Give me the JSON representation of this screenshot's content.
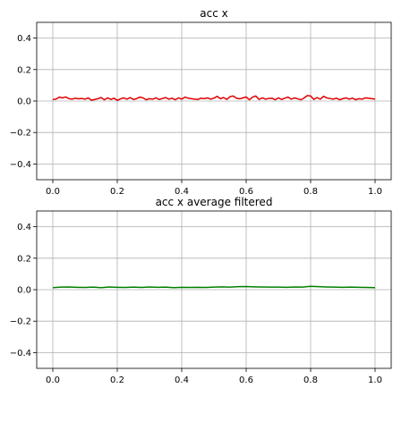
{
  "chart_data": [
    {
      "type": "line",
      "title": "acc x",
      "xlabel": "",
      "ylabel": "",
      "xlim": [
        -0.05,
        1.05
      ],
      "ylim": [
        -0.5,
        0.5
      ],
      "grid": true,
      "legend": "none",
      "xticks": [
        "0.0",
        "0.2",
        "0.4",
        "0.6",
        "0.8",
        "1.0"
      ],
      "yticks": [
        "0.4",
        "0.2",
        "0.0",
        "−0.2",
        "−0.4"
      ],
      "series": [
        {
          "color": "#e00000",
          "x": [
            0.0,
            0.01,
            0.02,
            0.03,
            0.04,
            0.05,
            0.06,
            0.07,
            0.08,
            0.09,
            0.1,
            0.11,
            0.12,
            0.13,
            0.14,
            0.15,
            0.16,
            0.17,
            0.18,
            0.19,
            0.2,
            0.21,
            0.22,
            0.23,
            0.24,
            0.25,
            0.26,
            0.27,
            0.28,
            0.29,
            0.3,
            0.31,
            0.32,
            0.33,
            0.34,
            0.35,
            0.36,
            0.37,
            0.38,
            0.39,
            0.4,
            0.41,
            0.42,
            0.43,
            0.44,
            0.45,
            0.46,
            0.47,
            0.48,
            0.49,
            0.5,
            0.51,
            0.52,
            0.53,
            0.54,
            0.55,
            0.56,
            0.57,
            0.58,
            0.59,
            0.6,
            0.61,
            0.62,
            0.63,
            0.64,
            0.65,
            0.66,
            0.67,
            0.68,
            0.69,
            0.7,
            0.71,
            0.72,
            0.73,
            0.74,
            0.75,
            0.76,
            0.77,
            0.78,
            0.79,
            0.8,
            0.81,
            0.82,
            0.83,
            0.84,
            0.85,
            0.86,
            0.87,
            0.88,
            0.89,
            0.9,
            0.91,
            0.92,
            0.93,
            0.94,
            0.95,
            0.96,
            0.97,
            0.98,
            0.99,
            1.0
          ],
          "y": [
            0.01,
            0.012,
            0.025,
            0.02,
            0.026,
            0.015,
            0.012,
            0.018,
            0.014,
            0.016,
            0.012,
            0.02,
            0.005,
            0.01,
            0.015,
            0.022,
            0.008,
            0.02,
            0.01,
            0.018,
            0.004,
            0.014,
            0.02,
            0.012,
            0.022,
            0.01,
            0.015,
            0.025,
            0.02,
            0.008,
            0.015,
            0.012,
            0.02,
            0.01,
            0.016,
            0.022,
            0.012,
            0.018,
            0.008,
            0.02,
            0.012,
            0.025,
            0.018,
            0.015,
            0.012,
            0.01,
            0.018,
            0.015,
            0.02,
            0.012,
            0.018,
            0.03,
            0.015,
            0.022,
            0.01,
            0.028,
            0.032,
            0.018,
            0.014,
            0.02,
            0.026,
            0.008,
            0.025,
            0.032,
            0.01,
            0.02,
            0.012,
            0.016,
            0.018,
            0.008,
            0.02,
            0.01,
            0.018,
            0.025,
            0.012,
            0.02,
            0.014,
            0.008,
            0.02,
            0.035,
            0.032,
            0.01,
            0.022,
            0.012,
            0.03,
            0.02,
            0.016,
            0.012,
            0.018,
            0.008,
            0.015,
            0.02,
            0.012,
            0.018,
            0.008,
            0.015,
            0.012,
            0.02,
            0.018,
            0.015,
            0.012
          ]
        }
      ]
    },
    {
      "type": "line",
      "title": "acc x average filtered",
      "xlabel": "",
      "ylabel": "",
      "xlim": [
        -0.05,
        1.05
      ],
      "ylim": [
        -0.5,
        0.5
      ],
      "grid": true,
      "legend": "none",
      "xticks": [
        "0.0",
        "0.2",
        "0.4",
        "0.6",
        "0.8",
        "1.0"
      ],
      "yticks": [
        "0.4",
        "0.2",
        "0.0",
        "−0.2",
        "−0.4"
      ],
      "series": [
        {
          "color": "#008000",
          "x": [
            0.0,
            0.025,
            0.05,
            0.075,
            0.1,
            0.125,
            0.15,
            0.175,
            0.2,
            0.225,
            0.25,
            0.275,
            0.3,
            0.325,
            0.35,
            0.375,
            0.4,
            0.425,
            0.45,
            0.475,
            0.5,
            0.525,
            0.55,
            0.575,
            0.6,
            0.625,
            0.65,
            0.675,
            0.7,
            0.725,
            0.75,
            0.775,
            0.8,
            0.825,
            0.85,
            0.875,
            0.9,
            0.925,
            0.95,
            0.975,
            1.0
          ],
          "y": [
            0.013,
            0.016,
            0.017,
            0.015,
            0.014,
            0.016,
            0.013,
            0.017,
            0.015,
            0.014,
            0.016,
            0.014,
            0.017,
            0.015,
            0.016,
            0.013,
            0.015,
            0.014,
            0.015,
            0.014,
            0.016,
            0.018,
            0.016,
            0.019,
            0.02,
            0.018,
            0.017,
            0.016,
            0.016,
            0.015,
            0.017,
            0.016,
            0.021,
            0.019,
            0.017,
            0.016,
            0.015,
            0.016,
            0.015,
            0.014,
            0.013
          ]
        }
      ]
    }
  ]
}
